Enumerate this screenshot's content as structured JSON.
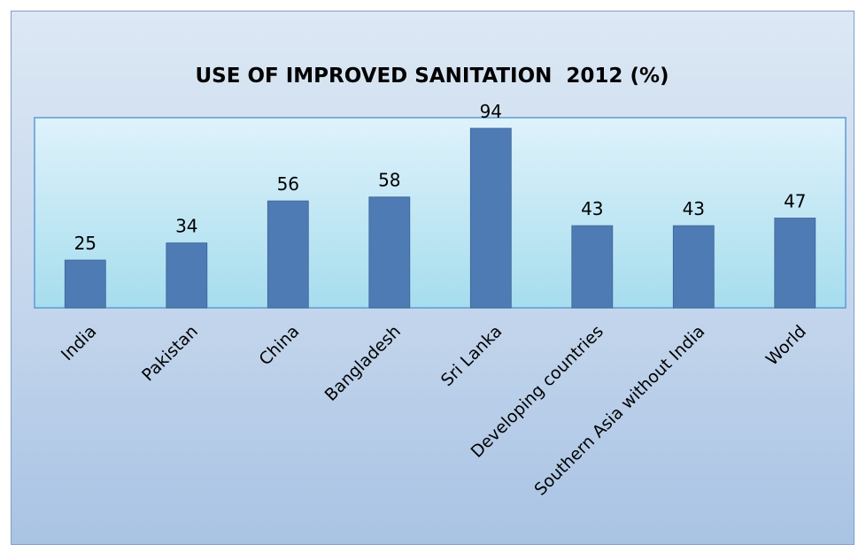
{
  "chart_data": {
    "type": "bar",
    "title": "USE OF IMPROVED SANITATION  2012 (%)",
    "categories": [
      "India",
      "Pakistan",
      "China",
      "Bangladesh",
      "Sri Lanka",
      "Developing countries",
      "Southern Asia without India",
      "World"
    ],
    "values": [
      25,
      34,
      56,
      58,
      94,
      43,
      43,
      47
    ],
    "data_labels": [
      "25",
      "34",
      "56",
      "58",
      "94",
      "43",
      "43",
      "47"
    ],
    "xlabel": "",
    "ylabel": "",
    "ylim": [
      0,
      94
    ],
    "grid": false,
    "legend": "none",
    "colors": {
      "bar": "#4f7bb4",
      "bar_edge": "#3b6599",
      "plot_top": "#dff2fb",
      "plot_bottom": "#a6ddee",
      "plot_border": "#5b9bd5",
      "background_top": "#dce8f4",
      "background_bottom": "#a9c3e4"
    }
  }
}
